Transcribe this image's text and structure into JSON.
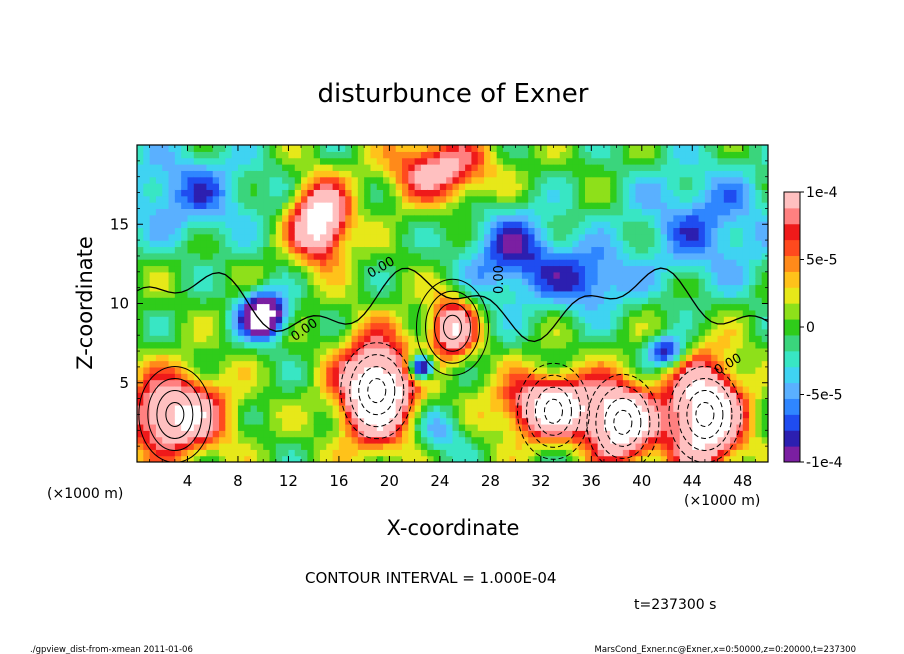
{
  "chart_data": {
    "type": "heatmap",
    "title": "disturbunce of Exner",
    "xlabel": "X-coordinate",
    "ylabel": "Z-coordinate",
    "x_unit": "(×1000 m)",
    "x_unit_right": "(×1000 m)",
    "xlim": [
      0,
      50
    ],
    "ylim": [
      0,
      20
    ],
    "x_ticks": [
      4,
      8,
      12,
      16,
      20,
      24,
      28,
      32,
      36,
      40,
      44,
      48
    ],
    "y_ticks": [
      5,
      10,
      15
    ],
    "colorbar": {
      "range": [
        -0.0001,
        0.0001
      ],
      "tick_labels": [
        "1e-4",
        "5e-5",
        "0",
        "-5e-5",
        "-1e-4"
      ],
      "tick_values": [
        0.0001,
        5e-05,
        0,
        -5e-05,
        -0.0001
      ],
      "colors": [
        "#7b1fa2",
        "#2c1fb0",
        "#1f4cf0",
        "#2f86ff",
        "#5ab0ff",
        "#3fd3f2",
        "#38e6c4",
        "#3ad57c",
        "#2fcc1a",
        "#8ee01a",
        "#e7e819",
        "#ffc21a",
        "#ff8a1a",
        "#ff4a1e",
        "#ef1a1a",
        "#ff8080",
        "#ffc0c0"
      ]
    },
    "contour_labels": [
      "0.00",
      "0.00",
      "0.00",
      "0.00"
    ],
    "contour_interval_text": "CONTOUR INTERVAL = 1.000E-04",
    "time_text": "t=237300 s",
    "footer_left": "./gpview_dist-from-xmean 2011-01-06",
    "footer_right": "MarsCond_Exner.nc@Exner,x=0:50000,z=0:20000,t=237300",
    "field_features": [
      {
        "x": 14.5,
        "z": 15.2,
        "sx": 2.2,
        "sz": 2.4,
        "amp": 1.6
      },
      {
        "x": 10.0,
        "z": 9.3,
        "sx": 1.8,
        "sz": 1.4,
        "amp": -1.6
      },
      {
        "x": 19.0,
        "z": 4.5,
        "sx": 3.0,
        "sz": 3.2,
        "amp": 1.8
      },
      {
        "x": 25.0,
        "z": 8.5,
        "sx": 1.8,
        "sz": 2.0,
        "amp": 1.2
      },
      {
        "x": 33.0,
        "z": 3.5,
        "sx": 4.0,
        "sz": 2.0,
        "amp": 1.5
      },
      {
        "x": 38.5,
        "z": 2.5,
        "sx": 2.5,
        "sz": 2.5,
        "amp": 1.5
      },
      {
        "x": 45.0,
        "z": 3.0,
        "sx": 3.0,
        "sz": 3.5,
        "amp": 1.7
      },
      {
        "x": 3.0,
        "z": 3.0,
        "sx": 4.0,
        "sz": 2.5,
        "amp": 1.4
      },
      {
        "x": 24.0,
        "z": 18.5,
        "sx": 4.0,
        "sz": 2.0,
        "amp": 1.0
      },
      {
        "x": 30.0,
        "z": 13.0,
        "sx": 4.0,
        "sz": 3.0,
        "amp": -0.8
      },
      {
        "x": 36.0,
        "z": 11.5,
        "sx": 3.0,
        "sz": 2.0,
        "amp": -0.7
      },
      {
        "x": 22.5,
        "z": 6.0,
        "sx": 1.0,
        "sz": 0.8,
        "amp": -1.6
      },
      {
        "x": 4.0,
        "z": 17.0,
        "sx": 6.0,
        "sz": 3.0,
        "amp": -0.6
      },
      {
        "x": 45.0,
        "z": 15.0,
        "sx": 6.0,
        "sz": 4.0,
        "amp": -0.6
      },
      {
        "x": 24.0,
        "z": 2.0,
        "sx": 2.0,
        "sz": 1.5,
        "amp": -0.5
      },
      {
        "x": 42.0,
        "z": 7.0,
        "sx": 1.5,
        "sz": 1.0,
        "amp": -1.0
      }
    ]
  }
}
